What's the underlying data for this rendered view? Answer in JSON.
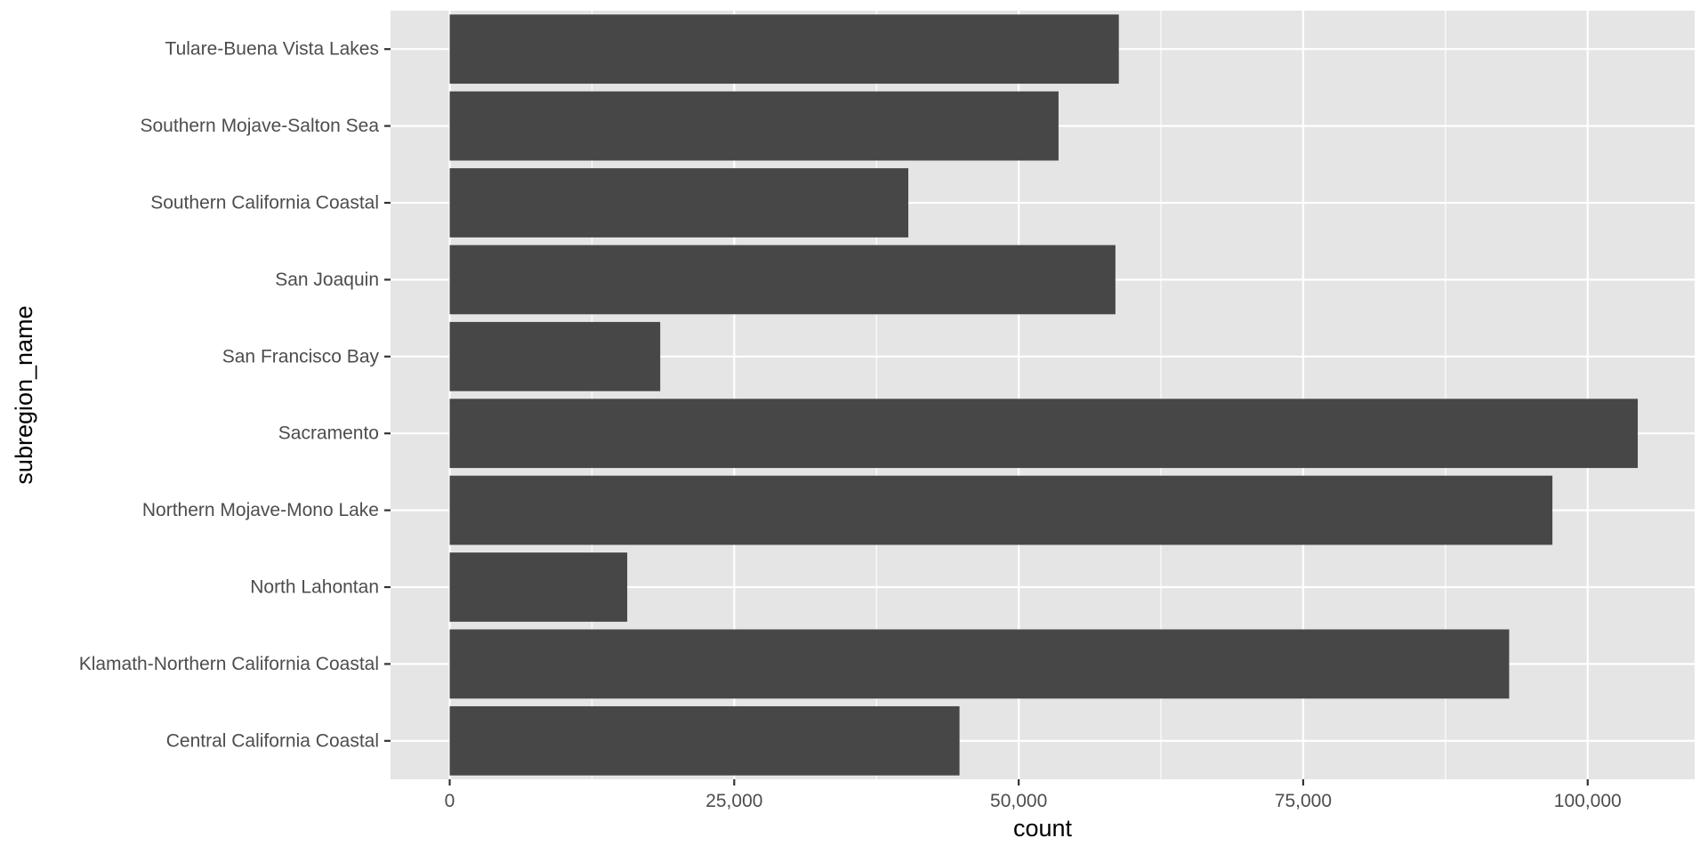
{
  "chart_data": {
    "type": "bar",
    "orientation": "horizontal",
    "xlabel": "count",
    "ylabel": "subregion_name",
    "xlim": [
      -5200,
      109400
    ],
    "x_ticks": [
      {
        "value": 0,
        "label": "0"
      },
      {
        "value": 25000,
        "label": "25,000"
      },
      {
        "value": 50000,
        "label": "50,000"
      },
      {
        "value": 75000,
        "label": "75,000"
      },
      {
        "value": 100000,
        "label": "100,000"
      }
    ],
    "categories": [
      "Central California Coastal",
      "Klamath-Northern California Coastal",
      "North Lahontan",
      "Northern Mojave-Mono Lake",
      "Sacramento",
      "San Francisco Bay",
      "San Joaquin",
      "Southern California Coastal",
      "Southern Mojave-Salton Sea",
      "Tulare-Buena Vista Lakes"
    ],
    "values": [
      44800,
      93100,
      15600,
      96900,
      104400,
      18500,
      58500,
      40300,
      53500,
      58800
    ],
    "grid": true,
    "colors": {
      "panel_background": "#e5e5e5",
      "grid_major": "#ffffff",
      "bar_fill": "#474747",
      "tick_text": "#4d4d4d",
      "axis_title": "#000000"
    }
  }
}
